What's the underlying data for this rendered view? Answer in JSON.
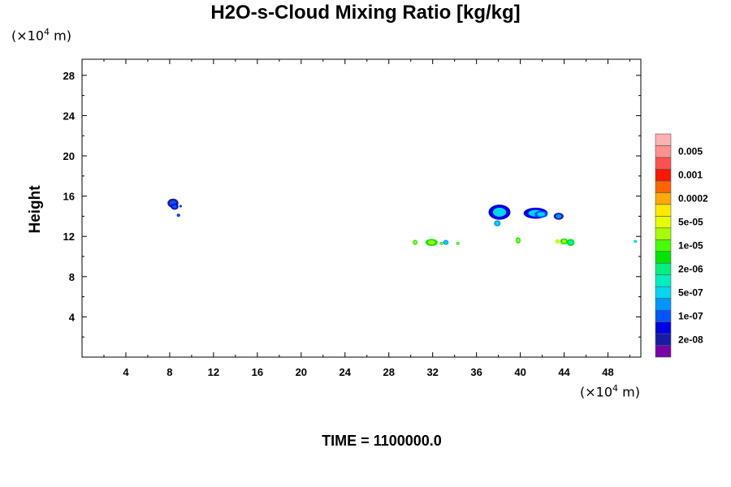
{
  "title": "H2O-s-Cloud Mixing Ratio [kg/kg]",
  "y_unit": {
    "prefix": "(×10",
    "exp": "4",
    "suffix": " m)"
  },
  "x_unit": {
    "prefix": "(×10",
    "exp": "4",
    "suffix": " m)"
  },
  "time_label": "TIME = 1100000.0",
  "chart_data": {
    "type": "heatmap",
    "title": "H2O-s-Cloud Mixing Ratio [kg/kg]",
    "xlabel": "",
    "ylabel": "Height",
    "xlim": [
      0,
      51
    ],
    "ylim": [
      0,
      29.6
    ],
    "x_ticks": [
      4,
      8,
      12,
      16,
      20,
      24,
      28,
      32,
      36,
      40,
      44,
      48
    ],
    "y_ticks": [
      4,
      8,
      12,
      16,
      20,
      24,
      28
    ],
    "colorbar": {
      "levels": [
        {
          "color": "#7a00a8",
          "label": ""
        },
        {
          "color": "#1a1aa8",
          "label": "2e-08"
        },
        {
          "color": "#0000e6",
          "label": ""
        },
        {
          "color": "#0055ff",
          "label": "1e-07"
        },
        {
          "color": "#0096ff",
          "label": ""
        },
        {
          "color": "#00d7f0",
          "label": "5e-07"
        },
        {
          "color": "#00f0c0",
          "label": ""
        },
        {
          "color": "#00f080",
          "label": "2e-06"
        },
        {
          "color": "#00e600",
          "label": ""
        },
        {
          "color": "#46ff00",
          "label": "1e-05"
        },
        {
          "color": "#a6ff00",
          "label": ""
        },
        {
          "color": "#e6ff00",
          "label": "5e-05"
        },
        {
          "color": "#ffea00",
          "label": ""
        },
        {
          "color": "#ffaa00",
          "label": "0.0002"
        },
        {
          "color": "#ff6400",
          "label": ""
        },
        {
          "color": "#ff1400",
          "label": "0.001"
        },
        {
          "color": "#ff5050",
          "label": ""
        },
        {
          "color": "#ff9090",
          "label": "0.005"
        },
        {
          "color": "#ffb0b0",
          "label": ""
        }
      ]
    },
    "features": [
      {
        "x": 8.3,
        "y": 15.3,
        "rx": 0.5,
        "ry": 0.45,
        "outer": "#1a1aa8",
        "inner": "#0055ff"
      },
      {
        "x": 8.45,
        "y": 14.95,
        "rx": 0.35,
        "ry": 0.3,
        "outer": "#0000e6",
        "inner": "#0055ff"
      },
      {
        "x": 9.0,
        "y": 15.0,
        "rx": 0.12,
        "ry": 0.12,
        "outer": "#1a1aa8",
        "inner": "#0055ff"
      },
      {
        "x": 8.8,
        "y": 14.1,
        "rx": 0.15,
        "ry": 0.15,
        "outer": "#0000e6",
        "inner": "#0055ff"
      },
      {
        "x": 30.4,
        "y": 11.4,
        "rx": 0.2,
        "ry": 0.25,
        "outer": "#00e600",
        "inner": "#a6ff00"
      },
      {
        "x": 31.9,
        "y": 11.4,
        "rx": 0.55,
        "ry": 0.35,
        "outer": "#00e600",
        "inner": "#a6ff00"
      },
      {
        "x": 32.8,
        "y": 11.3,
        "rx": 0.15,
        "ry": 0.15,
        "outer": "#00e600",
        "inner": "#a6ff00"
      },
      {
        "x": 33.2,
        "y": 11.4,
        "rx": 0.25,
        "ry": 0.25,
        "outer": "#0096ff",
        "inner": "#00d7f0"
      },
      {
        "x": 34.3,
        "y": 11.3,
        "rx": 0.15,
        "ry": 0.15,
        "outer": "#00e600",
        "inner": "#a6ff00"
      },
      {
        "x": 38.1,
        "y": 14.4,
        "rx": 1.0,
        "ry": 0.75,
        "outer": "#0000e6",
        "inner": "#00d7f0"
      },
      {
        "x": 37.9,
        "y": 13.3,
        "rx": 0.3,
        "ry": 0.3,
        "outer": "#0096ff",
        "inner": "#00d7f0"
      },
      {
        "x": 41.4,
        "y": 14.3,
        "rx": 1.1,
        "ry": 0.55,
        "outer": "#0000e6",
        "inner": "#00d7f0"
      },
      {
        "x": 41.9,
        "y": 14.2,
        "rx": 0.6,
        "ry": 0.35,
        "outer": "#0055ff",
        "inner": "#00d7f0"
      },
      {
        "x": 43.5,
        "y": 14.0,
        "rx": 0.45,
        "ry": 0.35,
        "outer": "#1a1aa8",
        "inner": "#0096ff"
      },
      {
        "x": 39.8,
        "y": 11.6,
        "rx": 0.22,
        "ry": 0.3,
        "outer": "#00e600",
        "inner": "#a6ff00"
      },
      {
        "x": 43.4,
        "y": 11.5,
        "rx": 0.2,
        "ry": 0.2,
        "outer": "#a6ff00",
        "inner": "#e6ff00"
      },
      {
        "x": 44.0,
        "y": 11.5,
        "rx": 0.35,
        "ry": 0.3,
        "outer": "#00e600",
        "inner": "#a6ff00"
      },
      {
        "x": 44.6,
        "y": 11.4,
        "rx": 0.35,
        "ry": 0.35,
        "outer": "#00e600",
        "inner": "#00f0c0"
      },
      {
        "x": 50.5,
        "y": 11.5,
        "rx": 0.15,
        "ry": 0.15,
        "outer": "#00d7f0",
        "inner": "#00f0c0"
      }
    ]
  }
}
